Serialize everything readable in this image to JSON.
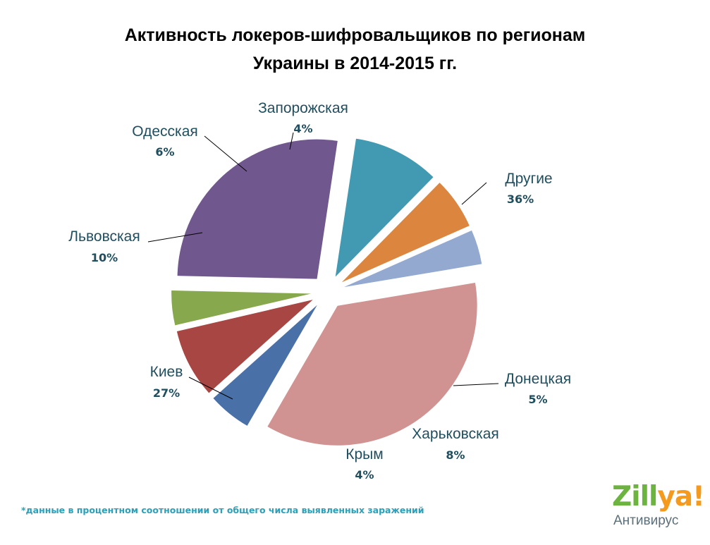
{
  "chart_data": {
    "type": "pie",
    "title_line1": "Активность локеров-шифровальщиков по регионам",
    "title_line2": "Украины в 2014-2015 гг.",
    "unit": "%",
    "slices": [
      {
        "name": "Другие",
        "value": 36,
        "label": "36%",
        "color": "#d09392"
      },
      {
        "name": "Донецкая",
        "value": 5,
        "label": "5%",
        "color": "#4a70a8"
      },
      {
        "name": "Харьковская",
        "value": 8,
        "label": "8%",
        "color": "#a84644"
      },
      {
        "name": "Крым",
        "value": 4,
        "label": "4%",
        "color": "#87a84d"
      },
      {
        "name": "Киев",
        "value": 27,
        "label": "27%",
        "color": "#70588e"
      },
      {
        "name": "Львовская",
        "value": 10,
        "label": "10%",
        "color": "#4199b2"
      },
      {
        "name": "Одесская",
        "value": 6,
        "label": "6%",
        "color": "#db853f"
      },
      {
        "name": "Запорожская",
        "value": 4,
        "label": "4%",
        "color": "#93a9d0"
      }
    ]
  },
  "footnote": "*данные в процентном соотношении от общего  числа выявленных заражений",
  "logo": {
    "word_main": "Zill",
    "word_accent": "ya!",
    "subtitle": "Антивирус",
    "colors": {
      "main": "#6db33f",
      "accent": "#f49a1f",
      "subtitle": "#5b6f7a"
    }
  }
}
